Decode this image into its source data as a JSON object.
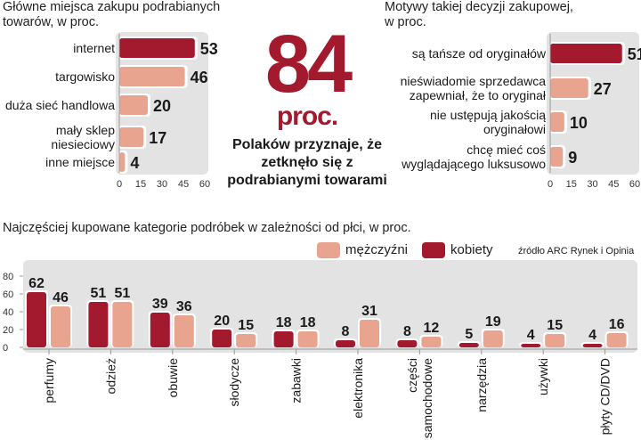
{
  "colors": {
    "dark": "#a3192e",
    "light": "#e8a48e",
    "panel": "#e3e3e3",
    "axis": "#999999"
  },
  "left_panel": {
    "title_line1": "Główne miejsca zakupu podrabianych",
    "title_line2": "towarów, w proc."
  },
  "center": {
    "big_number": "84",
    "unit": "proc.",
    "line1": "Polaków przyznaje, że",
    "line2": "zetknęło się z",
    "line3": "podrabianymi towarami"
  },
  "right_panel": {
    "title_line1": "Motywy takiej decyzji zakupowej,",
    "title_line2": "w proc."
  },
  "bottom_panel": {
    "title": "Najczęściej kupowane kategorie podróbek w zależności od płci, w proc.",
    "source": "źródło ARC Rynek i Opinia"
  },
  "legend": {
    "men": "mężczyźni",
    "women": "kobiety"
  },
  "chart_data": [
    {
      "type": "bar",
      "orientation": "horizontal",
      "title": "Główne miejsca zakupu podrabianych towarów, w proc.",
      "categories": [
        [
          "internet"
        ],
        [
          "targowisko"
        ],
        [
          "duża sieć handlowa"
        ],
        [
          "mały sklep",
          "niesieciowy"
        ],
        [
          "inne miejsce"
        ]
      ],
      "values": [
        53,
        46,
        20,
        17,
        4
      ],
      "highlight": [
        true,
        false,
        false,
        false,
        false
      ],
      "xlim": [
        0,
        60
      ],
      "ticks": [
        0,
        15,
        30,
        45,
        60
      ]
    },
    {
      "type": "bar",
      "orientation": "horizontal",
      "title": "Motywy takiej decyzji zakupowej, w proc.",
      "categories": [
        [
          "są tańsze od oryginałów"
        ],
        [
          "nieświadomie sprzedawca",
          "zapewniał, że to oryginał"
        ],
        [
          "nie ustępują jakością",
          "oryginałowi"
        ],
        [
          "chcę mieć coś",
          "wyglądającego luksusowo"
        ]
      ],
      "values": [
        51,
        27,
        10,
        9
      ],
      "highlight": [
        true,
        false,
        false,
        false
      ],
      "xlim": [
        0,
        60
      ],
      "ticks": [
        0,
        15,
        30,
        45,
        60
      ]
    },
    {
      "type": "bar",
      "orientation": "vertical",
      "title": "Najczęściej kupowane kategorie podróbek w zależności od płci, w proc.",
      "categories": [
        [
          "perfumy"
        ],
        [
          "odzież"
        ],
        [
          "obuwie"
        ],
        [
          "słodycze"
        ],
        [
          "zabawki"
        ],
        [
          "elektronika"
        ],
        [
          "części",
          "samochodowe"
        ],
        [
          "narzędzia"
        ],
        [
          "używki"
        ],
        [
          "płyty CD/DVD"
        ]
      ],
      "series": [
        {
          "name": "kobiety",
          "values": [
            62,
            51,
            39,
            20,
            18,
            8,
            8,
            5,
            4,
            4
          ]
        },
        {
          "name": "mężczyźni",
          "values": [
            46,
            51,
            36,
            15,
            18,
            31,
            12,
            19,
            15,
            16
          ]
        }
      ],
      "ylim": [
        0,
        80
      ],
      "ticks": [
        0,
        20,
        40,
        60,
        80
      ]
    }
  ]
}
